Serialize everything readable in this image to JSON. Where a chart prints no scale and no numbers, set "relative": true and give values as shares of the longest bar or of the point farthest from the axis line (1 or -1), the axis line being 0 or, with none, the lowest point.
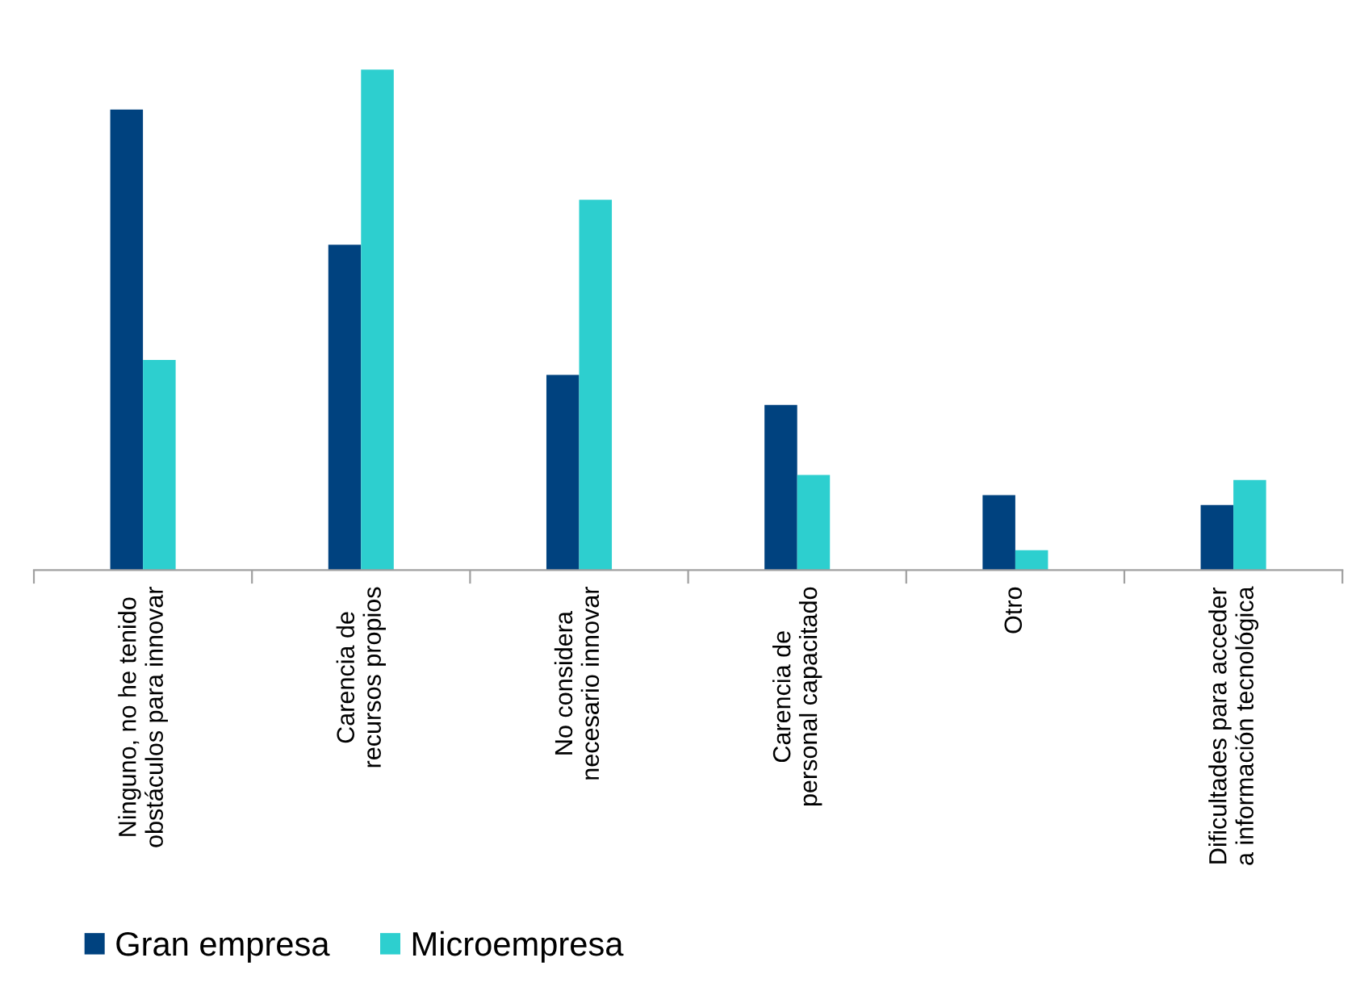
{
  "chart_data": {
    "type": "bar",
    "relative": true,
    "categories": [
      "Ninguno, no he tenido\nobstáculos para innovar",
      "Carencia de\nrecursos propios",
      "No considera\nnecesario innovar",
      "Carencia de\npersonal capacitado",
      "Otro",
      "Dificultades para acceder\na información tecnológica"
    ],
    "series": [
      {
        "name": "Gran empresa",
        "color": "#00427f",
        "values": [
          0.92,
          0.65,
          0.39,
          0.33,
          0.15,
          0.13
        ]
      },
      {
        "name": "Microempresa",
        "color": "#2dcfcf",
        "values": [
          0.42,
          1,
          0.74,
          0.19,
          0.04,
          0.18
        ]
      }
    ],
    "legend": "bottom left",
    "grid": false
  }
}
